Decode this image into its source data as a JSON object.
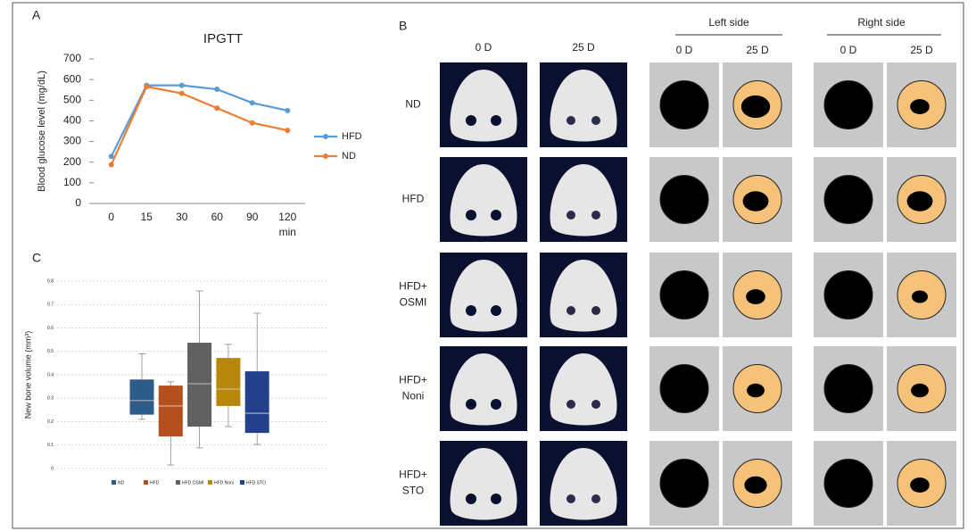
{
  "panel_labels": [
    "A",
    "B",
    "C"
  ],
  "chart_data": [
    {
      "type": "line",
      "title": "IPGTT",
      "y_label": "Blood glucose level (mg/dL)",
      "x_unit": "min",
      "categories": [
        "0",
        "15",
        "30",
        "60",
        "90",
        "120"
      ],
      "series": [
        {
          "name": "HFD",
          "color": "#5b9bd5",
          "values": [
            228,
            572,
            572,
            553,
            487,
            450
          ]
        },
        {
          "name": "ND",
          "color": "#ed7d31",
          "values": [
            188,
            566,
            533,
            462,
            390,
            354
          ]
        }
      ],
      "ylim": [
        0,
        700
      ],
      "yticks": [
        0,
        100,
        200,
        300,
        400,
        500,
        600,
        700
      ],
      "legend": "right"
    },
    {
      "type": "box",
      "y_label": "New bone volume (mm³)",
      "series": [
        {
          "name": "ND",
          "color": "#2e5c8a",
          "min": 0.21,
          "q1": 0.23,
          "median": 0.29,
          "q3": 0.38,
          "max": 0.49
        },
        {
          "name": "HFD",
          "color": "#b5501e",
          "min": 0.015,
          "q1": 0.137,
          "median": 0.267,
          "q3": 0.354,
          "max": 0.37
        },
        {
          "name": "HFD OSMI",
          "color": "#606060",
          "min": 0.088,
          "q1": 0.179,
          "median": 0.362,
          "q3": 0.537,
          "max": 0.758
        },
        {
          "name": "HFD Noni",
          "color": "#b8860b",
          "min": 0.179,
          "q1": 0.267,
          "median": 0.339,
          "q3": 0.472,
          "max": 0.53
        },
        {
          "name": "HFD STO",
          "color": "#22408c",
          "min": 0.103,
          "q1": 0.152,
          "median": 0.236,
          "q3": 0.415,
          "max": 0.663
        }
      ],
      "ylim": [
        0,
        0.8
      ],
      "yticks": [
        0,
        0.1,
        0.2,
        0.3,
        0.4,
        0.5,
        0.6,
        0.7,
        0.8
      ],
      "grid": true,
      "legend": "bottom"
    }
  ],
  "panel_b": {
    "group_headers": [
      "Left side",
      "Right side"
    ],
    "column_headers": [
      "0 D",
      "25 D",
      "0 D",
      "25 D",
      "0 D",
      "25 D"
    ],
    "rows": [
      [
        "ND"
      ],
      [
        "HFD"
      ],
      [
        "HFD+",
        "OSMI"
      ],
      [
        "HFD+",
        "Noni"
      ],
      [
        "HFD+",
        "STO"
      ]
    ]
  }
}
